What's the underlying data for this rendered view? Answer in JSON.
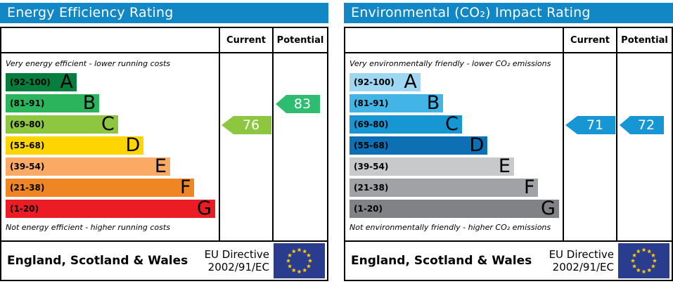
{
  "colors": {
    "header_bg": "#1287c6",
    "flag_bg": "#2a3c8e",
    "flag_star": "#ffcc00"
  },
  "chart_data": [
    {
      "type": "bar",
      "title": "Energy Efficiency Rating",
      "categories": [
        "A (92-100)",
        "B (81-91)",
        "C (69-80)",
        "D (55-68)",
        "E (39-54)",
        "F (21-38)",
        "G (1-20)"
      ],
      "band_colors": [
        "#057d3c",
        "#2cb45c",
        "#8dc63f",
        "#fed500",
        "#fbaa65",
        "#ef8623",
        "#ec1c24"
      ],
      "current_value": 76,
      "current_band": "C",
      "potential_value": 83,
      "potential_band": "B",
      "top_note": "Very energy efficient - lower running costs",
      "bottom_note": "Not energy efficient - higher running costs",
      "region": "England, Scotland & Wales",
      "directive": "EU Directive 2002/91/EC"
    },
    {
      "type": "bar",
      "title": "Environmental (CO₂) Impact Rating",
      "categories": [
        "A (92-100)",
        "B (81-91)",
        "C (69-80)",
        "D (55-68)",
        "E (39-54)",
        "F (21-38)",
        "G (1-20)"
      ],
      "band_colors": [
        "#9fd7f2",
        "#42b5e6",
        "#1697d3",
        "#0d70b4",
        "#c8c9cb",
        "#a0a2a5",
        "#808285"
      ],
      "current_value": 71,
      "current_band": "C",
      "potential_value": 72,
      "potential_band": "C",
      "top_note": "Very environmentally friendly - lower CO₂ emissions",
      "bottom_note": "Not environmentally friendly - higher CO₂ emissions",
      "region": "England, Scotland & Wales",
      "directive": "EU Directive 2002/91/EC"
    }
  ],
  "panels": [
    {
      "title": "Energy Efficiency Rating",
      "header": {
        "current": "Current",
        "potential": "Potential"
      },
      "top_caption": "Very energy efficient - lower running costs",
      "bottom_caption": "Not energy efficient - higher running costs",
      "bands": [
        {
          "range": "(92-100)",
          "letter": "A",
          "color": "#057d3c",
          "width_pct": 33.5
        },
        {
          "range": "(81-91)",
          "letter": "B",
          "color": "#2cb45c",
          "width_pct": 44.3
        },
        {
          "range": "(69-80)",
          "letter": "C",
          "color": "#8dc63f",
          "width_pct": 53.1
        },
        {
          "range": "(55-68)",
          "letter": "D",
          "color": "#fed500",
          "width_pct": 65.2
        },
        {
          "range": "(39-54)",
          "letter": "E",
          "color": "#fbaa65",
          "width_pct": 77.7
        },
        {
          "range": "(21-38)",
          "letter": "F",
          "color": "#ef8623",
          "width_pct": 89.2
        },
        {
          "range": "(1-20)",
          "letter": "G",
          "color": "#ec1c24",
          "width_pct": 99.0
        }
      ],
      "current": {
        "value": "76",
        "band_index": 2,
        "color": "#8dc63f"
      },
      "potential": {
        "value": "83",
        "band_index": 1,
        "color": "#2ebd70"
      },
      "footer": {
        "region": "England, Scotland & Wales",
        "directive_line1": "EU Directive",
        "directive_line2": "2002/91/EC"
      }
    },
    {
      "title": "Environmental (CO₂) Impact Rating",
      "header": {
        "current": "Current",
        "potential": "Potential"
      },
      "top_caption": "Very environmentally friendly - lower CO₂ emissions",
      "bottom_caption": "Not environmentally friendly - higher CO₂ emissions",
      "bands": [
        {
          "range": "(92-100)",
          "letter": "A",
          "color": "#9fd7f2",
          "width_pct": 33.5
        },
        {
          "range": "(81-91)",
          "letter": "B",
          "color": "#42b5e6",
          "width_pct": 44.3
        },
        {
          "range": "(69-80)",
          "letter": "C",
          "color": "#1697d3",
          "width_pct": 53.1
        },
        {
          "range": "(55-68)",
          "letter": "D",
          "color": "#0d70b4",
          "width_pct": 65.2
        },
        {
          "range": "(39-54)",
          "letter": "E",
          "color": "#c8c9cb",
          "width_pct": 77.7
        },
        {
          "range": "(21-38)",
          "letter": "F",
          "color": "#a0a2a5",
          "width_pct": 89.2
        },
        {
          "range": "(1-20)",
          "letter": "G",
          "color": "#808285",
          "width_pct": 99.0
        }
      ],
      "current": {
        "value": "71",
        "band_index": 2,
        "color": "#1697d3"
      },
      "potential": {
        "value": "72",
        "band_index": 2,
        "color": "#1697d3"
      },
      "footer": {
        "region": "England, Scotland & Wales",
        "directive_line1": "EU Directive",
        "directive_line2": "2002/91/EC"
      }
    }
  ]
}
